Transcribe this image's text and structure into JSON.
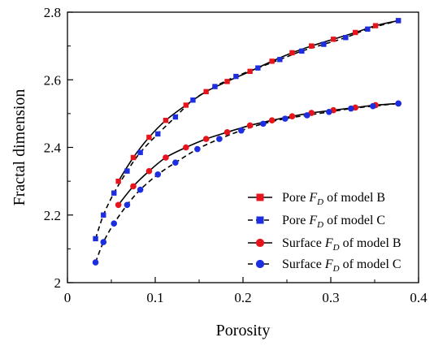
{
  "chart_data": {
    "type": "line",
    "xlabel": "Porosity",
    "ylabel": "Fractal dimension",
    "xlim": [
      0,
      0.4
    ],
    "ylim": [
      2.0,
      2.8
    ],
    "xticks": [
      0,
      0.1,
      0.2,
      0.3,
      0.4
    ],
    "yticks": [
      2.0,
      2.2,
      2.4,
      2.6,
      2.8
    ],
    "xtick_labels": [
      "0",
      "0.1",
      "0.2",
      "0.3",
      "0.4"
    ],
    "ytick_labels": [
      "2",
      "2.2",
      "2.4",
      "2.6",
      "2.8"
    ],
    "grid": false,
    "legend_position": "bottom-right",
    "series": [
      {
        "name": "Pore FD of model B",
        "legend_prefix": "Pore ",
        "legend_sym": "F",
        "legend_sub": "D",
        "legend_suffix": " of model B",
        "color": "#e8141b",
        "marker": "square",
        "line_style": "solid",
        "x": [
          0.058,
          0.075,
          0.093,
          0.112,
          0.135,
          0.158,
          0.182,
          0.208,
          0.233,
          0.256,
          0.278,
          0.303,
          0.328,
          0.351,
          0.377
        ],
        "y": [
          2.3,
          2.37,
          2.43,
          2.48,
          2.525,
          2.565,
          2.595,
          2.625,
          2.655,
          2.68,
          2.7,
          2.72,
          2.74,
          2.76,
          2.775
        ]
      },
      {
        "name": "Pore FD of model C",
        "legend_prefix": "Pore ",
        "legend_sym": "F",
        "legend_sub": "D",
        "legend_suffix": " of model C",
        "color": "#1c2ee0",
        "marker": "square",
        "line_style": "dashed",
        "x": [
          0.032,
          0.041,
          0.053,
          0.068,
          0.083,
          0.103,
          0.123,
          0.143,
          0.168,
          0.192,
          0.217,
          0.242,
          0.267,
          0.292,
          0.317,
          0.342,
          0.377
        ],
        "y": [
          2.13,
          2.2,
          2.265,
          2.33,
          2.385,
          2.44,
          2.49,
          2.54,
          2.58,
          2.61,
          2.635,
          2.66,
          2.685,
          2.705,
          2.725,
          2.75,
          2.775
        ]
      },
      {
        "name": "Surface FD of model B",
        "legend_prefix": "Surface ",
        "legend_sym": "F",
        "legend_sub": "D",
        "legend_suffix": " of model B",
        "color": "#e8141b",
        "marker": "circle",
        "line_style": "solid",
        "x": [
          0.058,
          0.075,
          0.093,
          0.112,
          0.135,
          0.158,
          0.182,
          0.208,
          0.233,
          0.256,
          0.278,
          0.303,
          0.328,
          0.351,
          0.377
        ],
        "y": [
          2.23,
          2.285,
          2.33,
          2.37,
          2.4,
          2.425,
          2.445,
          2.465,
          2.48,
          2.492,
          2.502,
          2.51,
          2.518,
          2.525,
          2.53
        ]
      },
      {
        "name": "Surface FD of model C",
        "legend_prefix": "Surface ",
        "legend_sym": "F",
        "legend_sub": "D",
        "legend_suffix": " of model C",
        "color": "#1c2ee0",
        "marker": "circle",
        "line_style": "dashed",
        "x": [
          0.032,
          0.041,
          0.053,
          0.068,
          0.083,
          0.103,
          0.123,
          0.148,
          0.173,
          0.198,
          0.223,
          0.248,
          0.273,
          0.298,
          0.323,
          0.348,
          0.377
        ],
        "y": [
          2.06,
          2.12,
          2.175,
          2.23,
          2.275,
          2.32,
          2.355,
          2.395,
          2.425,
          2.45,
          2.47,
          2.485,
          2.495,
          2.505,
          2.515,
          2.522,
          2.53
        ]
      }
    ]
  }
}
